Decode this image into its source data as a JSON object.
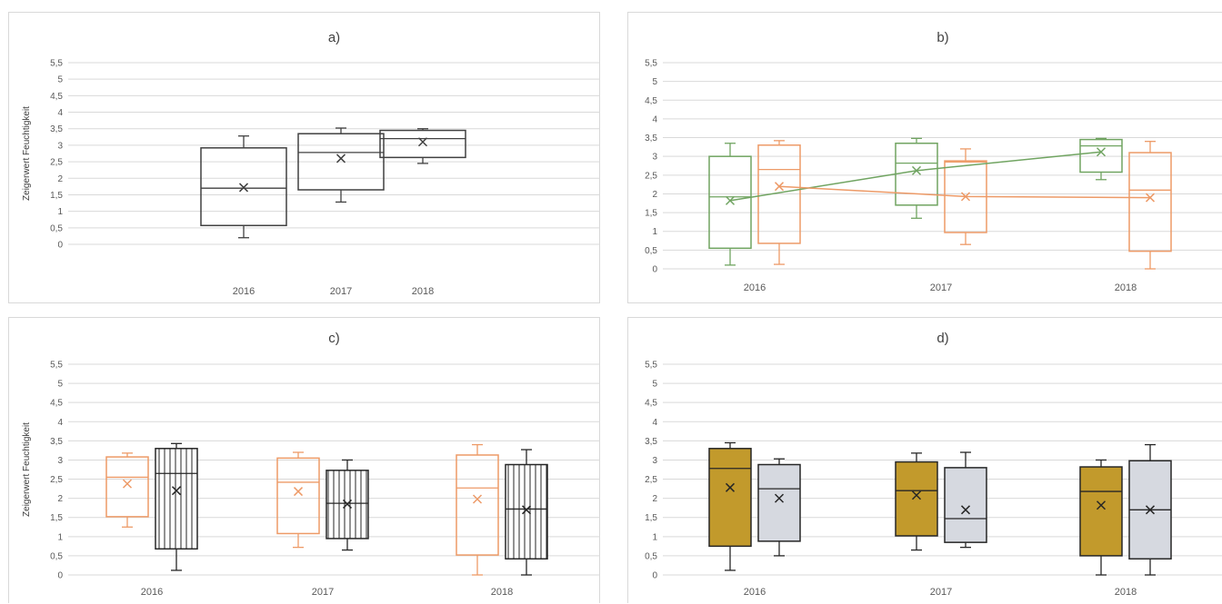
{
  "chart_data": [
    {
      "id": "a",
      "type": "box",
      "title": "a)",
      "ylabel": "Zeigerwert Feuchtigkeit",
      "ylim": [
        0,
        5.5
      ],
      "yticks": [
        "0",
        "0,5",
        "1",
        "1,5",
        "2",
        "2,5",
        "3",
        "3,5",
        "4",
        "4,5",
        "5",
        "5,5"
      ],
      "categories": [
        "2016",
        "2017",
        "2018"
      ],
      "grid": true,
      "series": [
        {
          "color": "#404040",
          "fill": "none",
          "pattern": "none",
          "boxes": [
            {
              "min": 0.2,
              "q1": 0.57,
              "median": 1.7,
              "q3": 2.92,
              "max": 3.28,
              "mean": 1.72
            },
            {
              "min": 1.28,
              "q1": 1.65,
              "median": 2.78,
              "q3": 3.35,
              "max": 3.52,
              "mean": 2.6
            },
            {
              "min": 2.45,
              "q1": 2.63,
              "median": 3.2,
              "q3": 3.45,
              "max": 3.5,
              "mean": 3.1
            }
          ]
        }
      ]
    },
    {
      "id": "b",
      "type": "box",
      "title": "b)",
      "ylabel": "",
      "ylim": [
        0,
        5.5
      ],
      "yticks": [
        "0",
        "0,5",
        "1",
        "1,5",
        "2",
        "2,5",
        "3",
        "3,5",
        "4",
        "4,5",
        "5",
        "5,5"
      ],
      "categories": [
        "2016",
        "2017",
        "2018"
      ],
      "grid": true,
      "mean_lines": true,
      "series": [
        {
          "color": "#70a461",
          "fill": "none",
          "pattern": "none",
          "boxes": [
            {
              "min": 0.1,
              "q1": 0.55,
              "median": 1.92,
              "q3": 3.0,
              "max": 3.35,
              "mean": 1.82
            },
            {
              "min": 1.35,
              "q1": 1.7,
              "median": 2.82,
              "q3": 3.35,
              "max": 3.48,
              "mean": 2.62
            },
            {
              "min": 2.38,
              "q1": 2.58,
              "median": 3.28,
              "q3": 3.45,
              "max": 3.48,
              "mean": 3.12
            }
          ]
        },
        {
          "color": "#ed9a67",
          "fill": "none",
          "pattern": "none",
          "boxes": [
            {
              "min": 0.12,
              "q1": 0.68,
              "median": 2.65,
              "q3": 3.3,
              "max": 3.42,
              "mean": 2.2
            },
            {
              "min": 0.65,
              "q1": 0.97,
              "median": 2.85,
              "q3": 2.88,
              "max": 3.2,
              "mean": 1.93
            },
            {
              "min": 0.0,
              "q1": 0.47,
              "median": 2.1,
              "q3": 3.1,
              "max": 3.4,
              "mean": 1.9
            }
          ]
        }
      ]
    },
    {
      "id": "c",
      "type": "box",
      "title": "c)",
      "ylabel": "Zeigerwert Feuchtigkeit",
      "ylim": [
        0,
        5.5
      ],
      "yticks": [
        "0",
        "0,5",
        "1",
        "1,5",
        "2",
        "2,5",
        "3",
        "3,5",
        "4",
        "4,5",
        "5",
        "5,5"
      ],
      "categories": [
        "2016",
        "2017",
        "2018"
      ],
      "grid": true,
      "series": [
        {
          "color": "#ed9a67",
          "fill": "none",
          "pattern": "none",
          "boxes": [
            {
              "min": 1.25,
              "q1": 1.52,
              "median": 2.55,
              "q3": 3.08,
              "max": 3.18,
              "mean": 2.38
            },
            {
              "min": 0.72,
              "q1": 1.08,
              "median": 2.42,
              "q3": 3.05,
              "max": 3.2,
              "mean": 2.18
            },
            {
              "min": 0.0,
              "q1": 0.52,
              "median": 2.27,
              "q3": 3.13,
              "max": 3.4,
              "mean": 1.98
            }
          ]
        },
        {
          "color": "#262626",
          "fill": "none",
          "pattern": "vertical-lines",
          "boxes": [
            {
              "min": 0.12,
              "q1": 0.68,
              "median": 2.65,
              "q3": 3.3,
              "max": 3.43,
              "mean": 2.2
            },
            {
              "min": 0.65,
              "q1": 0.95,
              "median": 1.87,
              "q3": 2.73,
              "max": 3.0,
              "mean": 1.85
            },
            {
              "min": 0.0,
              "q1": 0.42,
              "median": 1.72,
              "q3": 2.88,
              "max": 3.27,
              "mean": 1.7
            }
          ]
        }
      ]
    },
    {
      "id": "d",
      "type": "box",
      "title": "d)",
      "ylabel": "",
      "ylim": [
        0,
        5.5
      ],
      "yticks": [
        "0",
        "0,5",
        "1",
        "1,5",
        "2",
        "2,5",
        "3",
        "3,5",
        "4",
        "4,5",
        "5",
        "5,5"
      ],
      "categories": [
        "2016",
        "2017",
        "2018"
      ],
      "grid": true,
      "series": [
        {
          "color": "#262626",
          "fill": "#c29a2c",
          "pattern": "none",
          "boxes": [
            {
              "min": 0.12,
              "q1": 0.75,
              "median": 2.78,
              "q3": 3.3,
              "max": 3.45,
              "mean": 2.28
            },
            {
              "min": 0.65,
              "q1": 1.02,
              "median": 2.2,
              "q3": 2.95,
              "max": 3.18,
              "mean": 2.08
            },
            {
              "min": 0.0,
              "q1": 0.5,
              "median": 2.18,
              "q3": 2.82,
              "max": 3.0,
              "mean": 1.82
            }
          ]
        },
        {
          "color": "#262626",
          "fill": "#d6d9e0",
          "pattern": "none",
          "boxes": [
            {
              "min": 0.5,
              "q1": 0.88,
              "median": 2.25,
              "q3": 2.88,
              "max": 3.03,
              "mean": 2.0
            },
            {
              "min": 0.72,
              "q1": 0.85,
              "median": 1.47,
              "q3": 2.8,
              "max": 3.2,
              "mean": 1.7
            },
            {
              "min": 0.0,
              "q1": 0.42,
              "median": 1.7,
              "q3": 2.98,
              "max": 3.4,
              "mean": 1.7
            }
          ]
        }
      ]
    }
  ]
}
